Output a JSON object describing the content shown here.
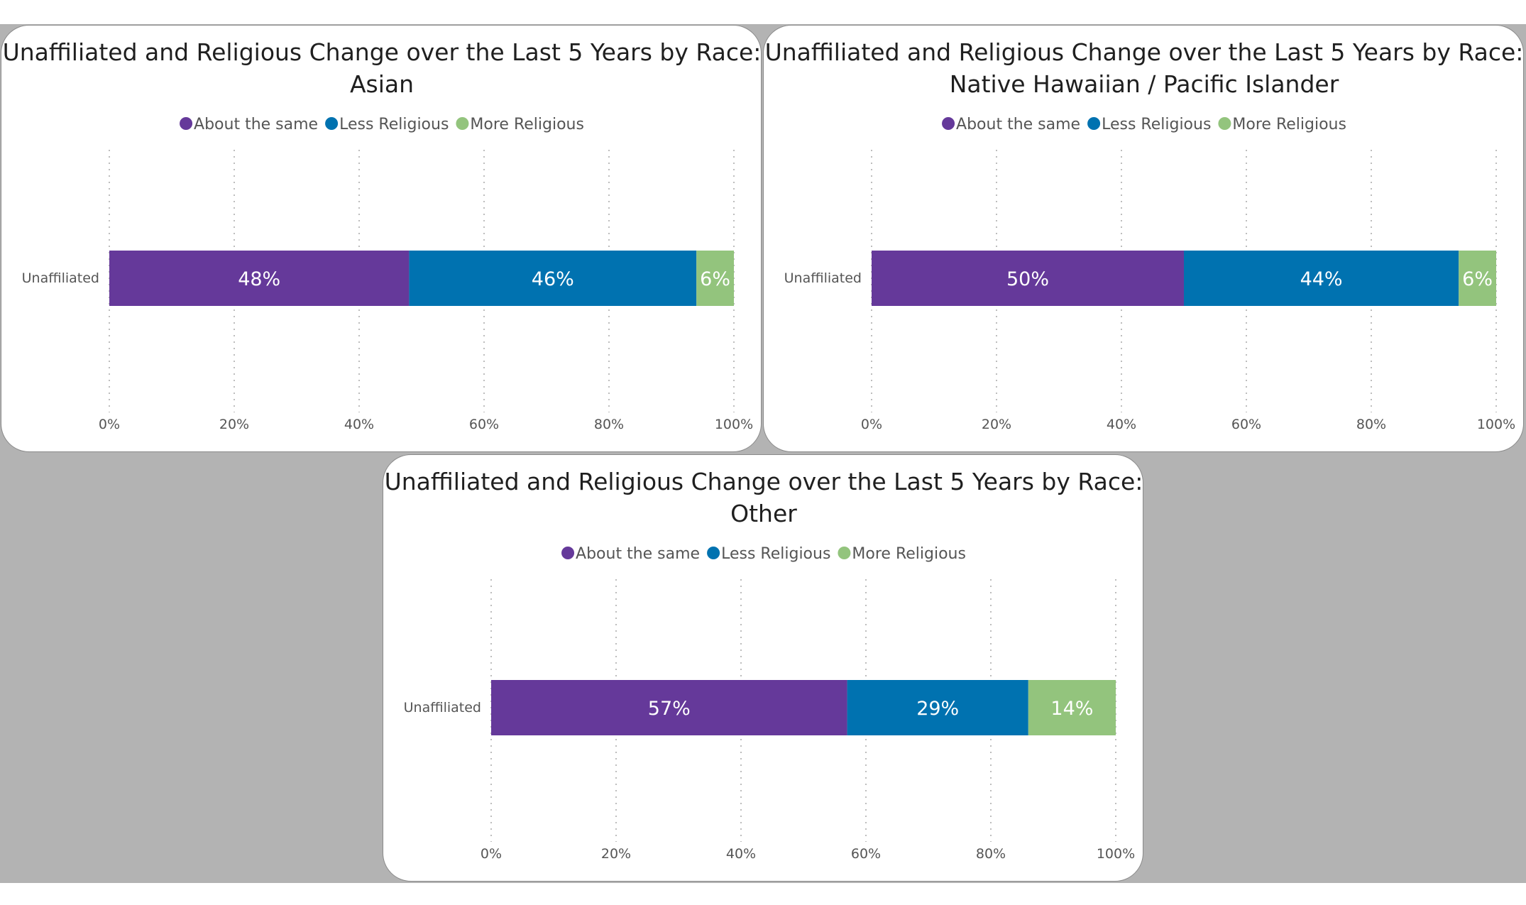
{
  "colors": {
    "about_the_same": "#65399a",
    "less_religious": "#0072b0",
    "more_religious": "#93c47d"
  },
  "chart_data": [
    {
      "type": "bar",
      "orientation": "horizontal",
      "stacked": "percent",
      "title_lines": [
        "Unaffiliated and Religious Change over the Last 5 Years by Race:",
        "Asian"
      ],
      "legend": [
        "About the same",
        "Less Religious",
        "More Religious"
      ],
      "categories": [
        "Unaffiliated"
      ],
      "series": [
        {
          "name": "About the same",
          "values": [
            48
          ],
          "label": "48%"
        },
        {
          "name": "Less Religious",
          "values": [
            46
          ],
          "label": "46%"
        },
        {
          "name": "More Religious",
          "values": [
            6
          ],
          "label": "6%"
        }
      ],
      "xticks": [
        "0%",
        "20%",
        "40%",
        "60%",
        "80%",
        "100%"
      ],
      "xlim": [
        0,
        100
      ],
      "grid": true,
      "legend_position": "top-center"
    },
    {
      "type": "bar",
      "orientation": "horizontal",
      "stacked": "percent",
      "title_lines": [
        "Unaffiliated and Religious Change over the Last 5 Years by Race:",
        "Native Hawaiian / Pacific Islander"
      ],
      "legend": [
        "About the same",
        "Less Religious",
        "More Religious"
      ],
      "categories": [
        "Unaffiliated"
      ],
      "series": [
        {
          "name": "About the same",
          "values": [
            50
          ],
          "label": "50%"
        },
        {
          "name": "Less Religious",
          "values": [
            44
          ],
          "label": "44%"
        },
        {
          "name": "More Religious",
          "values": [
            6
          ],
          "label": "6%"
        }
      ],
      "xticks": [
        "0%",
        "20%",
        "40%",
        "60%",
        "80%",
        "100%"
      ],
      "xlim": [
        0,
        100
      ],
      "grid": true,
      "legend_position": "top-center"
    },
    {
      "type": "bar",
      "orientation": "horizontal",
      "stacked": "percent",
      "title_lines": [
        "Unaffiliated and Religious Change over the Last 5 Years by Race:",
        "Other"
      ],
      "legend": [
        "About the same",
        "Less Religious",
        "More Religious"
      ],
      "categories": [
        "Unaffiliated"
      ],
      "series": [
        {
          "name": "About the same",
          "values": [
            57
          ],
          "label": "57%"
        },
        {
          "name": "Less Religious",
          "values": [
            29
          ],
          "label": "29%"
        },
        {
          "name": "More Religious",
          "values": [
            14
          ],
          "label": "14%"
        }
      ],
      "xticks": [
        "0%",
        "20%",
        "40%",
        "60%",
        "80%",
        "100%"
      ],
      "xlim": [
        0,
        100
      ],
      "grid": true,
      "legend_position": "top-center"
    }
  ]
}
